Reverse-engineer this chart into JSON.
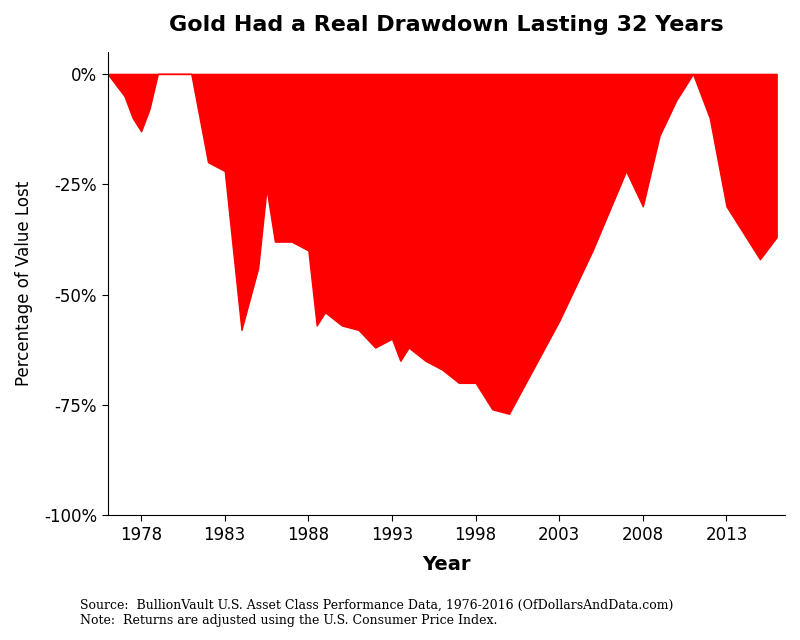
{
  "title": "Gold Had a Real Drawdown Lasting 32 Years",
  "xlabel": "Year",
  "ylabel": "Percentage of Value Lost",
  "fill_color": "#ff0000",
  "background_color": "#ffffff",
  "source_text": "Source:  BullionVault U.S. Asset Class Performance Data, 1976-2016 (OfDollarsAndData.com)\nNote:  Returns are adjusted using the U.S. Consumer Price Index.",
  "years": [
    1976,
    1977,
    1977.5,
    1978,
    1978.5,
    1979,
    1980,
    1981,
    1982,
    1983,
    1983.5,
    1984,
    1985,
    1985.5,
    1986,
    1987,
    1988,
    1988.5,
    1989,
    1990,
    1991,
    1992,
    1993,
    1993.5,
    1994,
    1995,
    1996,
    1997,
    1998,
    1999,
    2000,
    2001,
    2002,
    2003,
    2004,
    2005,
    2006,
    2007,
    2008,
    2009,
    2010,
    2011,
    2011.5,
    2012,
    2013,
    2014,
    2015,
    2016
  ],
  "drawdowns": [
    0.0,
    -0.05,
    -0.1,
    -0.13,
    -0.08,
    0.0,
    0.0,
    0.0,
    -0.2,
    -0.22,
    -0.4,
    -0.58,
    -0.44,
    -0.26,
    -0.38,
    -0.38,
    -0.4,
    -0.57,
    -0.54,
    -0.57,
    -0.58,
    -0.62,
    -0.6,
    -0.65,
    -0.62,
    -0.65,
    -0.67,
    -0.7,
    -0.7,
    -0.76,
    -0.77,
    -0.7,
    -0.63,
    -0.56,
    -0.48,
    -0.4,
    -0.31,
    -0.22,
    -0.3,
    -0.14,
    -0.06,
    0.0,
    -0.05,
    -0.1,
    -0.3,
    -0.36,
    -0.42,
    -0.37
  ],
  "xlim": [
    1976,
    2016.5
  ],
  "ylim": [
    -1.0,
    0.05
  ],
  "xticks": [
    1978,
    1983,
    1988,
    1993,
    1998,
    2003,
    2008,
    2013
  ],
  "yticks": [
    0.0,
    -0.25,
    -0.5,
    -0.75,
    -1.0
  ],
  "ytick_labels": [
    "0%",
    "-25%",
    "-50%",
    "-75%",
    "-100%"
  ]
}
